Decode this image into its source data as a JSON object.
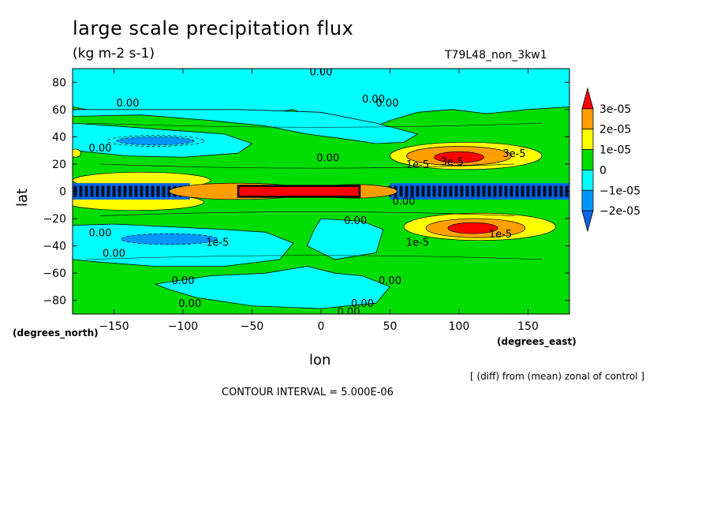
{
  "chart_data": {
    "type": "heatmap",
    "title": "large scale precipitation flux",
    "units": "(kg m-2 s-1)",
    "run_label": "T79L48_non_3kw1",
    "xlabel": "lon",
    "ylabel": "lat",
    "x_units_label": "(degrees_east)",
    "y_units_label": "(degrees_north)",
    "xlim": [
      -180,
      180
    ],
    "ylim": [
      -90,
      90
    ],
    "xticks": [
      -150,
      -100,
      -50,
      0,
      50,
      100,
      150
    ],
    "xtick_labels": [
      "−150",
      "−100",
      "−50",
      "0",
      "50",
      "100",
      "150"
    ],
    "yticks": [
      80,
      60,
      40,
      20,
      0,
      -20,
      -40,
      -60,
      -80
    ],
    "ytick_labels": [
      "80",
      "60",
      "40",
      "20",
      "0",
      "−20",
      "−40",
      "−60",
      "−80"
    ],
    "note": "[ (diff) from (mean) zonal of control ]",
    "contour_interval_label": "CONTOUR INTERVAL = 5.000E-06",
    "contour_labels": [
      "0.00",
      "1e-5",
      "3e-5"
    ],
    "colorbar": {
      "levels": [
        {
          "label": "3e-05",
          "value": 3e-05,
          "color": "#ff0000"
        },
        {
          "label": "2e-05",
          "value": 2e-05,
          "color": "#ff9e00"
        },
        {
          "label": "1e-05",
          "value": 1e-05,
          "color": "#ffff00"
        },
        {
          "label": "0",
          "value": 0,
          "color": "#00dd00"
        },
        {
          "label": "−1e-05",
          "value": -1e-05,
          "color": "#00ffff"
        },
        {
          "label": "−2e-05",
          "value": -2e-05,
          "color": "#0096ff"
        }
      ],
      "band_colors": [
        "#ff0000",
        "#ff9e00",
        "#ffff00",
        "#00dd00",
        "#00ffff",
        "#0096ff",
        "#0a64e6"
      ]
    },
    "background_color": "#00dd00",
    "features": [
      {
        "kind": "band",
        "lat_range": [
          60,
          90
        ],
        "lon_range": [
          -180,
          180
        ],
        "value_class": "negative",
        "color": "#00ffff"
      },
      {
        "kind": "band",
        "lat_range": [
          -90,
          -55
        ],
        "lon_range": [
          -180,
          180
        ],
        "value_class": "near-zero",
        "color": "#00dd00"
      },
      {
        "kind": "equatorial_band",
        "lat_range": [
          -6,
          6
        ],
        "lon_range": [
          -180,
          -100
        ],
        "value_class": "negative",
        "color": "#0064e6"
      },
      {
        "kind": "equatorial_band",
        "lat_range": [
          -6,
          6
        ],
        "lon_range": [
          50,
          180
        ],
        "value_class": "negative",
        "color": "#0064e6"
      },
      {
        "kind": "equatorial_max",
        "lat_range": [
          -3,
          3
        ],
        "lon_range": [
          -60,
          30
        ],
        "value_class": "max",
        "color": "#ff0000"
      },
      {
        "kind": "cell",
        "center": [
          100,
          25
        ],
        "value": 3e-05,
        "color": "#ff0000"
      },
      {
        "kind": "cell",
        "center": [
          110,
          -27
        ],
        "value": 3e-05,
        "color": "#ff0000"
      },
      {
        "kind": "cell",
        "center": [
          -120,
          37
        ],
        "value": -2e-05,
        "color": "#0096ff"
      },
      {
        "kind": "cell",
        "center": [
          -110,
          -35
        ],
        "value": -2e-05,
        "color": "#0096ff"
      }
    ]
  }
}
